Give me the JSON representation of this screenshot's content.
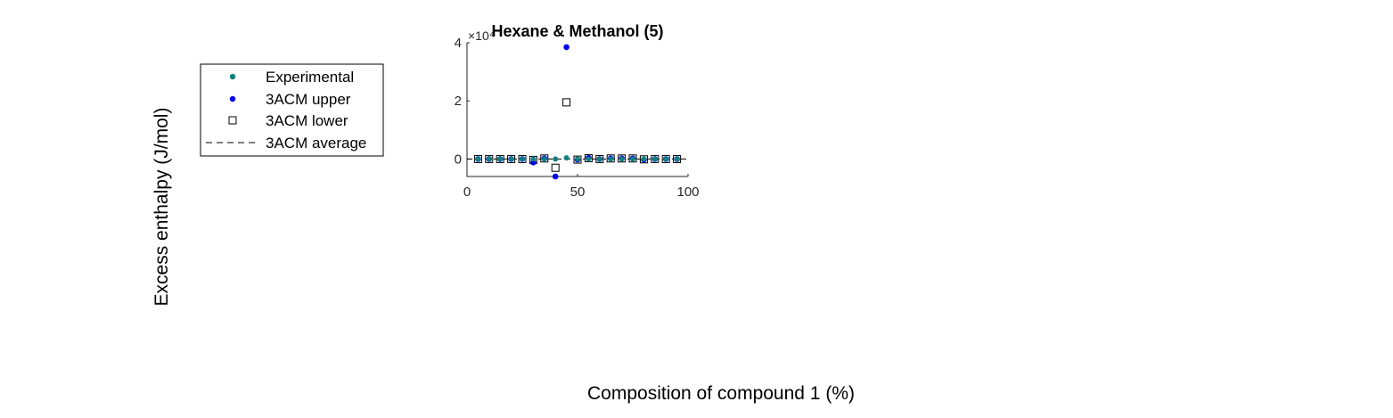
{
  "figure": {
    "ylabel": "Excess enthalpy (J/mol)",
    "xlabel": "Composition of compound 1 (%)"
  },
  "legend": {
    "entries": [
      {
        "label": "Experimental",
        "marker": "dot",
        "color": "#0f8080"
      },
      {
        "label": "3ACM upper",
        "marker": "dot",
        "color": "#0000ee"
      },
      {
        "label": "3ACM lower",
        "marker": "square",
        "color": "#000000"
      },
      {
        "label": "3ACM average",
        "marker": "dashed-line",
        "color": "#000000"
      }
    ]
  },
  "chart_data": {
    "type": "scatter",
    "title": "Hexane & Methanol (5)",
    "xlabel": "",
    "ylabel": "",
    "xlim": [
      0,
      100
    ],
    "ylim": [
      -6000,
      40000
    ],
    "xticks": [
      "0",
      "50",
      "100"
    ],
    "yticks": [
      "0",
      "2",
      "4"
    ],
    "ytick_values": [
      0,
      20000,
      40000
    ],
    "exponent_label": "×10⁴",
    "grid": false,
    "legend_position": "outside-left",
    "colors": {
      "experimental": "#0f8080",
      "upper": "#0000ee",
      "lower": "#000000",
      "average": "#000000"
    },
    "series": [
      {
        "name": "Experimental",
        "x": [
          5,
          10,
          15,
          20,
          25,
          30,
          35,
          40,
          45,
          50,
          55,
          60,
          65,
          70,
          75,
          80,
          85,
          90,
          95
        ],
        "y": [
          0,
          0,
          0,
          0,
          0,
          0,
          0,
          0,
          400,
          0,
          0,
          0,
          0,
          0,
          0,
          0,
          0,
          0,
          0
        ]
      },
      {
        "name": "3ACM upper",
        "x": [
          5,
          10,
          15,
          20,
          25,
          30,
          35,
          40,
          45,
          50,
          55,
          60,
          65,
          70,
          75,
          80,
          85,
          90,
          95
        ],
        "y": [
          0,
          0,
          0,
          0,
          0,
          -1200,
          200,
          -6000,
          38500,
          -200,
          400,
          0,
          200,
          200,
          200,
          -200,
          0,
          0,
          0
        ]
      },
      {
        "name": "3ACM lower",
        "x": [
          5,
          10,
          15,
          20,
          25,
          30,
          35,
          40,
          45,
          50,
          55,
          60,
          65,
          70,
          75,
          80,
          85,
          90,
          95
        ],
        "y": [
          0,
          0,
          0,
          0,
          0,
          -300,
          200,
          -3000,
          19500,
          -200,
          300,
          0,
          200,
          200,
          200,
          -100,
          0,
          0,
          0
        ]
      },
      {
        "name": "3ACM average",
        "x": [
          0,
          100
        ],
        "y": [
          0,
          0
        ]
      }
    ]
  }
}
